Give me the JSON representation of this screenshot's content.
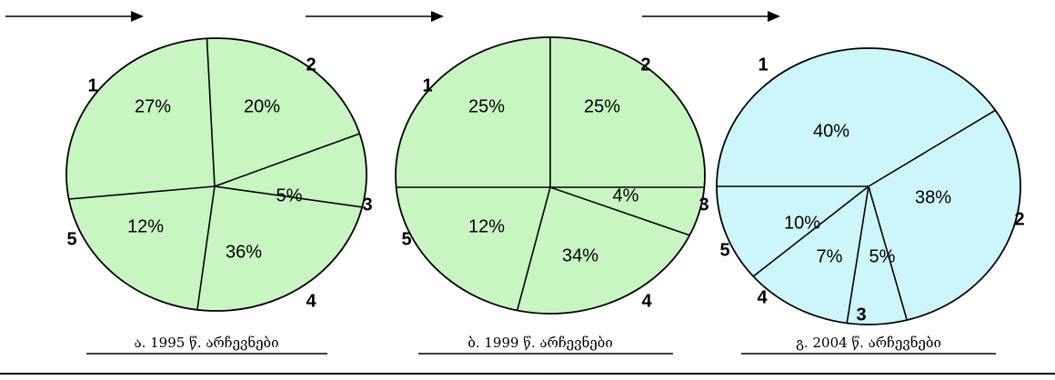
{
  "colors": {
    "pie_green": "#c8f5c2",
    "pie_cyan": "#cdf6fa",
    "stroke": "#000000"
  },
  "chart_data": [
    {
      "type": "pie",
      "caption": "ა. 1995 წ. არჩევნები",
      "fill": "#c8f5c2",
      "slices": [
        {
          "label": "1",
          "value": 27,
          "text": "27%"
        },
        {
          "label": "2",
          "value": 20,
          "text": "20%"
        },
        {
          "label": "3",
          "value": 5,
          "text": "5%"
        },
        {
          "label": "4",
          "value": 36,
          "text": "36%"
        },
        {
          "label": "5",
          "value": 12,
          "text": "12%"
        }
      ]
    },
    {
      "type": "pie",
      "caption": "ბ. 1999 წ. არჩევნები",
      "fill": "#c8f5c2",
      "slices": [
        {
          "label": "1",
          "value": 25,
          "text": "25%"
        },
        {
          "label": "2",
          "value": 25,
          "text": "25%"
        },
        {
          "label": "3",
          "value": 4,
          "text": "4%"
        },
        {
          "label": "4",
          "value": 34,
          "text": "34%"
        },
        {
          "label": "5",
          "value": 12,
          "text": "12%"
        }
      ]
    },
    {
      "type": "pie",
      "caption": "გ. 2004 წ. არჩევნები",
      "fill": "#cdf6fa",
      "slices": [
        {
          "label": "1",
          "value": 40,
          "text": "40%"
        },
        {
          "label": "2",
          "value": 38,
          "text": "38%"
        },
        {
          "label": "3",
          "value": 5,
          "text": "5%"
        },
        {
          "label": "4",
          "value": 7,
          "text": "7%"
        },
        {
          "label": "5",
          "value": 10,
          "text": "10%"
        }
      ]
    }
  ]
}
